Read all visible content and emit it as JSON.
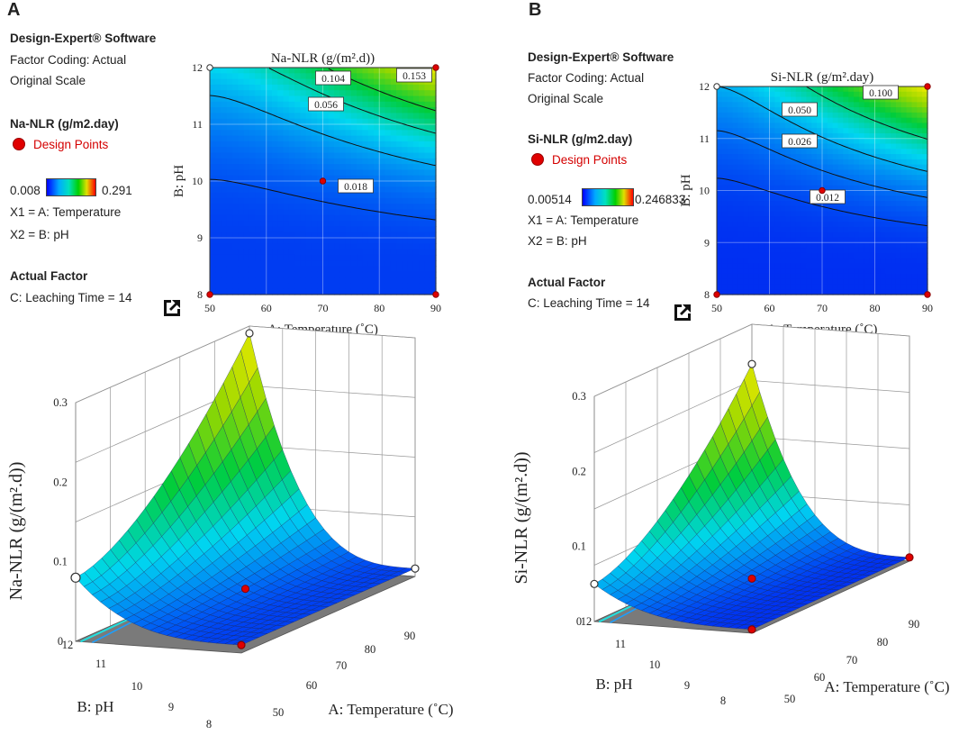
{
  "panels": [
    {
      "letter": "A",
      "software": "Design-Expert® Software",
      "coding": "Factor Coding: Actual",
      "scale": "Original Scale",
      "response": "Na-NLR (g/m2.day)",
      "design_points": "Design Points",
      "cmin": "0.008",
      "cmax": "0.291",
      "x1": "X1 = A: Temperature",
      "x2": "X2 = B: pH",
      "actual_factor": "Actual Factor",
      "leaching": "C: Leaching Time = 14"
    },
    {
      "letter": "B",
      "software": "Design-Expert® Software",
      "coding": "Factor Coding: Actual",
      "scale": "Original Scale",
      "response": "Si-NLR (g/m2.day)",
      "design_points": "Design Points",
      "cmin": "0.00514",
      "cmax": "0.246833",
      "x1": "X1 = A: Temperature",
      "x2": "X2 = B: pH",
      "actual_factor": "Actual Factor",
      "leaching": "C: Leaching Time = 14"
    }
  ],
  "colors": {
    "low": "#0000ff",
    "mid": "#00e0ff",
    "high": "#00c800",
    "top": "#e0e000",
    "point": "#e00000"
  },
  "chart_data": [
    {
      "type": "heatmap",
      "title": "Na-NLR (g/(m².d))",
      "xlabel": "A: Temperature (˚C)",
      "ylabel": "B: pH",
      "x_ticks": [
        "50",
        "60",
        "70",
        "80",
        "90"
      ],
      "y_ticks": [
        "8",
        "9",
        "10",
        "11",
        "12"
      ],
      "xlim": [
        50,
        90
      ],
      "ylim": [
        8,
        12
      ],
      "contour_labels": [
        "0.153",
        "0.104",
        "0.056",
        "0.018"
      ],
      "design_points": [
        [
          50,
          12
        ],
        [
          90,
          12
        ],
        [
          50,
          8
        ],
        [
          90,
          8
        ],
        [
          70,
          10
        ]
      ]
    },
    {
      "type": "heatmap",
      "title": "Si-NLR (g/m².day)",
      "xlabel": "A: Temperature (˚C)",
      "ylabel": "B: pH",
      "x_ticks": [
        "50",
        "60",
        "70",
        "80",
        "90"
      ],
      "y_ticks": [
        "8",
        "9",
        "10",
        "11",
        "12"
      ],
      "xlim": [
        50,
        90
      ],
      "ylim": [
        8,
        12
      ],
      "contour_labels": [
        "0.100",
        "0.050",
        "0.026",
        "0.012"
      ],
      "design_points": [
        [
          50,
          12
        ],
        [
          90,
          12
        ],
        [
          50,
          8
        ],
        [
          90,
          8
        ],
        [
          70,
          10
        ]
      ]
    },
    {
      "type": "surface",
      "zlabel": "Na-NLR (g/(m².d))",
      "xlabel": "A: Temperature (˚C)",
      "ylabel": "B: pH",
      "z_ticks": [
        "0",
        "0.1",
        "0.2",
        "0.3"
      ],
      "x_ticks": [
        "50",
        "60",
        "70",
        "80",
        "90"
      ],
      "y_ticks": [
        "8",
        "9",
        "10",
        "11",
        "12"
      ],
      "zlim": [
        0,
        0.3
      ],
      "corner_values": {
        "t50_ph12": 0.08,
        "t90_ph12": 0.291,
        "t50_ph8": 0.01,
        "t90_ph8": 0.01
      }
    },
    {
      "type": "surface",
      "zlabel": "Si-NLR (g/(m².d))",
      "xlabel": "A: Temperature (˚C)",
      "ylabel": "B: pH",
      "z_ticks": [
        "0",
        "0.1",
        "0.2",
        "0.3"
      ],
      "x_ticks": [
        "50",
        "60",
        "70",
        "80",
        "90"
      ],
      "y_ticks": [
        "8",
        "9",
        "10",
        "11",
        "12"
      ],
      "zlim": [
        0,
        0.3
      ],
      "corner_values": {
        "t50_ph12": 0.05,
        "t90_ph12": 0.247,
        "t50_ph8": 0.005,
        "t90_ph8": 0.005
      }
    }
  ]
}
